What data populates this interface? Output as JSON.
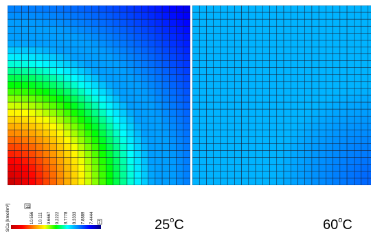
{
  "panels": [
    {
      "id": "left",
      "temperature_value": "25",
      "temperature_sup": "o",
      "temperature_unit": "C",
      "hot_spot": "bottom-left"
    },
    {
      "id": "right",
      "temperature_value": "60",
      "temperature_sup": "o",
      "temperature_unit": "C",
      "hot_spot": "none"
    }
  ],
  "legend": {
    "title": "SCa [kmol/m³]",
    "max_marker": "11",
    "min_marker": "7",
    "ticks": [
      "10.556",
      "10.111",
      "9.6667",
      "9.2222",
      "8.7778",
      "8.3333",
      "7.8889",
      "7.4444"
    ],
    "colors": [
      "#c00000",
      "#ff0000",
      "#ff8000",
      "#ffff00",
      "#00ff00",
      "#00ffff",
      "#0080ff",
      "#0000ff",
      "#000080"
    ]
  },
  "mesh": {
    "columns": 26,
    "rows": 26
  }
}
